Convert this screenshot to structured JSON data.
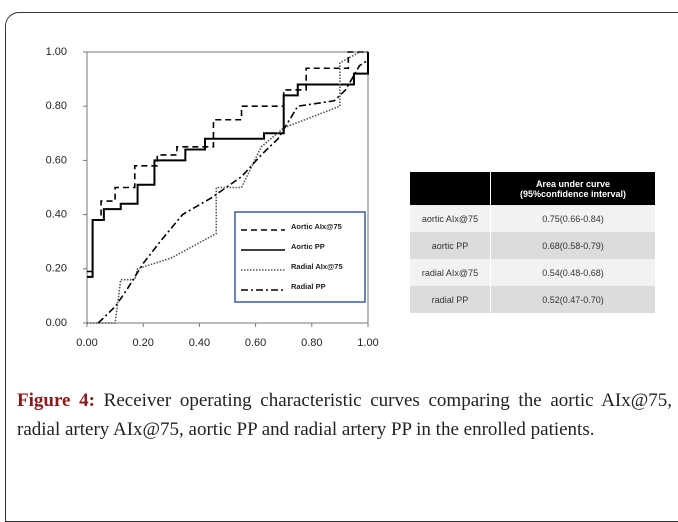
{
  "chart_data": {
    "type": "line",
    "xlim": [
      0,
      1
    ],
    "ylim": [
      0,
      1
    ],
    "xticks": [
      {
        "value": 0,
        "label": "0.00"
      },
      {
        "value": 0.2,
        "label": "0.20"
      },
      {
        "value": 0.4,
        "label": "0.40"
      },
      {
        "value": 0.6,
        "label": "0.60"
      },
      {
        "value": 0.8,
        "label": "0.80"
      },
      {
        "value": 1,
        "label": "1.00"
      }
    ],
    "yticks": [
      {
        "value": 0,
        "label": "0.00"
      },
      {
        "value": 0.2,
        "label": "0.20"
      },
      {
        "value": 0.4,
        "label": "0.40"
      },
      {
        "value": 0.6,
        "label": "0.60"
      },
      {
        "value": 0.8,
        "label": "0.80"
      },
      {
        "value": 1,
        "label": "1.00"
      }
    ],
    "legend": "lower-right",
    "legend_border_color": "#3a5fa0",
    "series": [
      {
        "name": "Aortic AIx@75",
        "color": "#000000",
        "dash": "dashed",
        "x": [
          0,
          0.02,
          0.02,
          0.05,
          0.05,
          0.1,
          0.1,
          0.17,
          0.17,
          0.25,
          0.25,
          0.32,
          0.32,
          0.45,
          0.45,
          0.55,
          0.55,
          0.7,
          0.7,
          0.78,
          0.78,
          0.93,
          0.93,
          1.0
        ],
        "y": [
          0.19,
          0.19,
          0.38,
          0.38,
          0.45,
          0.45,
          0.5,
          0.5,
          0.58,
          0.58,
          0.62,
          0.62,
          0.65,
          0.65,
          0.75,
          0.75,
          0.8,
          0.8,
          0.86,
          0.86,
          0.94,
          0.94,
          1.0,
          1.0
        ]
      },
      {
        "name": "Aortic PP",
        "color": "#000000",
        "dash": "solid",
        "x": [
          0,
          0.02,
          0.02,
          0.06,
          0.06,
          0.12,
          0.12,
          0.18,
          0.18,
          0.24,
          0.24,
          0.35,
          0.35,
          0.42,
          0.42,
          0.63,
          0.63,
          0.7,
          0.7,
          0.75,
          0.75,
          0.95,
          0.95,
          1.0,
          1.0
        ],
        "y": [
          0.17,
          0.17,
          0.38,
          0.38,
          0.42,
          0.42,
          0.44,
          0.44,
          0.51,
          0.51,
          0.6,
          0.6,
          0.64,
          0.64,
          0.68,
          0.68,
          0.7,
          0.7,
          0.84,
          0.84,
          0.88,
          0.88,
          0.92,
          0.92,
          1.0
        ]
      },
      {
        "name": "Radial AIx@75",
        "color": "#555555",
        "dash": "dotted",
        "x": [
          0,
          0.1,
          0.12,
          0.17,
          0.18,
          0.3,
          0.46,
          0.46,
          0.55,
          0.62,
          0.7,
          0.9,
          0.9,
          0.97,
          1.0
        ],
        "y": [
          0,
          0,
          0.16,
          0.16,
          0.2,
          0.24,
          0.33,
          0.5,
          0.5,
          0.65,
          0.72,
          0.8,
          0.96,
          1.0,
          1.0
        ]
      },
      {
        "name": "Radial PP",
        "color": "#000000",
        "dash": "dashdot",
        "x": [
          0.04,
          0.06,
          0.1,
          0.14,
          0.2,
          0.26,
          0.34,
          0.44,
          0.55,
          0.62,
          0.68,
          0.75,
          0.88,
          0.92,
          0.97,
          1.0
        ],
        "y": [
          0,
          0.02,
          0.06,
          0.12,
          0.22,
          0.3,
          0.4,
          0.46,
          0.54,
          0.62,
          0.68,
          0.8,
          0.82,
          0.86,
          0.95,
          0.97
        ]
      }
    ]
  },
  "table": {
    "header": [
      "Area under curve",
      "(95%confidence interval)"
    ],
    "rows": [
      [
        "aortic AIx@75",
        "0.75(0.66-0.84)"
      ],
      [
        "aortic PP",
        "0.68(0.58-0.79)"
      ],
      [
        "radial AIx@75",
        "0.54(0.48-0.68)"
      ],
      [
        "radial PP",
        "0.52(0.47-0.70)"
      ]
    ]
  },
  "caption": {
    "label": "Figure 4:",
    "text": "Receiver operating characteristic curves comparing the aortic AIx@75, radial artery AIx@75, aortic PP and radial artery PP in the enrolled patients."
  }
}
